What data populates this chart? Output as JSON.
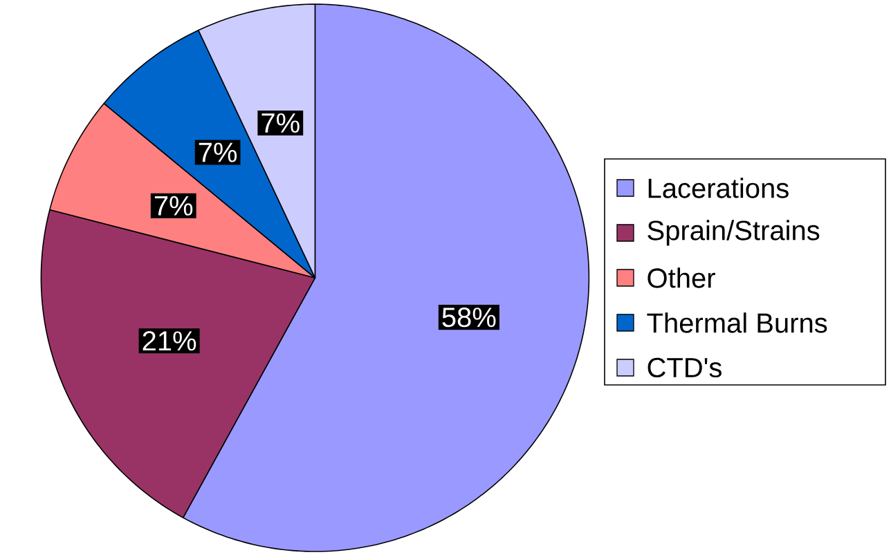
{
  "chart_data": {
    "type": "pie",
    "categories": [
      "Lacerations",
      "Sprain/Strains",
      "Other",
      "Thermal Burns",
      "CTD's"
    ],
    "values": [
      58,
      21,
      7,
      7,
      7
    ],
    "colors": [
      "#9999ff",
      "#993366",
      "#ff8080",
      "#0066cc",
      "#ccccff"
    ],
    "value_labels": [
      "58%",
      "21%",
      "7%",
      "7%",
      "7%"
    ],
    "legend": "right"
  }
}
